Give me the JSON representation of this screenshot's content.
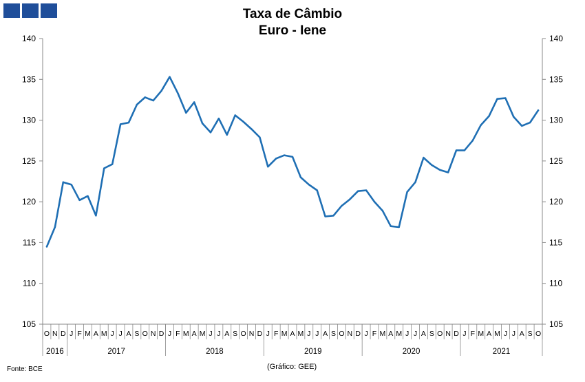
{
  "header": {
    "title": "Taxa de Câmbio",
    "subtitle": "Euro - Iene"
  },
  "footer": {
    "source": "Fonte: BCE",
    "credit": "(Gráfico: GEE)"
  },
  "colors": {
    "line": "#1f6fb4",
    "logo": "#1f4e9a",
    "axis": "#888888"
  },
  "chart_data": {
    "type": "line",
    "title": "Taxa de Câmbio Euro - Iene",
    "ylim": [
      105,
      140
    ],
    "yticks": [
      105,
      110,
      115,
      120,
      125,
      130,
      135,
      140
    ],
    "grid": false,
    "month_labels": [
      "O",
      "N",
      "D",
      "J",
      "F",
      "M",
      "A",
      "M",
      "J",
      "J",
      "A",
      "S",
      "O",
      "N",
      "D",
      "J",
      "F",
      "M",
      "A",
      "M",
      "J",
      "J",
      "A",
      "S",
      "O",
      "N",
      "D",
      "J",
      "F",
      "M",
      "A",
      "M",
      "J",
      "J",
      "A",
      "S",
      "O",
      "N",
      "D",
      "J",
      "F",
      "M",
      "A",
      "M",
      "J",
      "J",
      "A",
      "S",
      "O",
      "N",
      "D",
      "J",
      "F",
      "M",
      "A",
      "M",
      "J",
      "J",
      "A",
      "S",
      "O"
    ],
    "years": [
      {
        "label": "2016",
        "start": 0,
        "count": 3
      },
      {
        "label": "2017",
        "start": 3,
        "count": 12
      },
      {
        "label": "2018",
        "start": 15,
        "count": 12
      },
      {
        "label": "2019",
        "start": 27,
        "count": 12
      },
      {
        "label": "2020",
        "start": 39,
        "count": 12
      },
      {
        "label": "2021",
        "start": 51,
        "count": 10
      }
    ],
    "series": [
      {
        "values": [
          114.5,
          116.9,
          122.4,
          122.1,
          120.2,
          120.7,
          118.3,
          124.1,
          124.6,
          129.5,
          129.7,
          131.9,
          132.8,
          132.4,
          133.6,
          135.3,
          133.3,
          130.9,
          132.2,
          129.6,
          128.5,
          130.2,
          128.2,
          130.6,
          129.8,
          128.9,
          127.9,
          124.3,
          125.3,
          125.7,
          125.5,
          123.0,
          122.1,
          121.4,
          118.2,
          118.3,
          119.5,
          120.3,
          121.3,
          121.4,
          120.0,
          118.9,
          117.0,
          116.9,
          121.2,
          122.4,
          125.4,
          124.5,
          123.9,
          123.6,
          126.3,
          126.3,
          127.5,
          129.4,
          130.5,
          132.6,
          132.7,
          130.4,
          129.3,
          129.7,
          131.2
        ]
      }
    ]
  }
}
